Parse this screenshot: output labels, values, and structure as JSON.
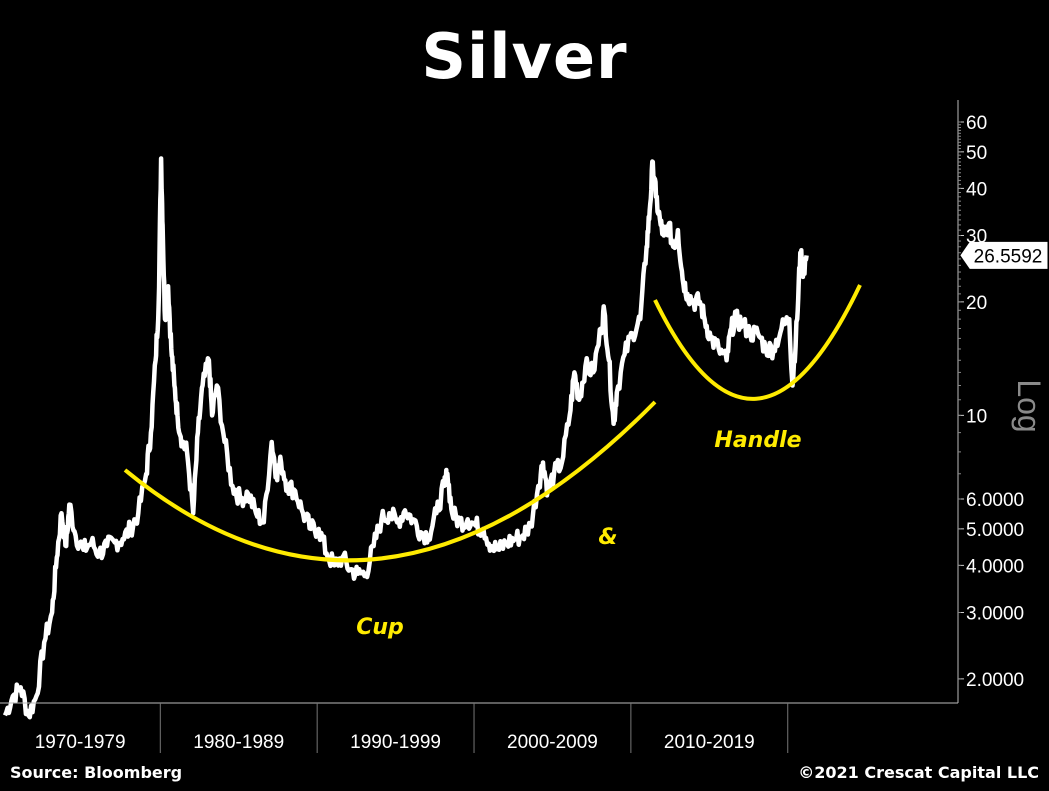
{
  "chart_data": {
    "type": "line",
    "title": "Silver",
    "y_scale": "log",
    "ylabel": "Log",
    "ylim": [
      1.2,
      65
    ],
    "y_ticks": [
      {
        "value": 60,
        "label": "60"
      },
      {
        "value": 50,
        "label": "50"
      },
      {
        "value": 40,
        "label": "40"
      },
      {
        "value": 30,
        "label": "30"
      },
      {
        "value": 20,
        "label": "20"
      },
      {
        "value": 10,
        "label": "10"
      },
      {
        "value": 6,
        "label": "6.0000"
      },
      {
        "value": 5,
        "label": "5.0000"
      },
      {
        "value": 4,
        "label": "4.0000"
      },
      {
        "value": 3,
        "label": "3.0000"
      },
      {
        "value": 2,
        "label": "2.0000"
      }
    ],
    "x_range": [
      1970,
      2021
    ],
    "x_categories": [
      "1970-1979",
      "1980-1989",
      "1990-1999",
      "2000-2009",
      "2010-2019"
    ],
    "last_value_label": "26.5592",
    "series": [
      {
        "x": [
          1970.0,
          1970.5,
          1971.0,
          1971.5,
          1972.0,
          1972.5,
          1973.0,
          1973.3,
          1973.6,
          1973.9,
          1974.1,
          1974.5,
          1975.0,
          1975.5,
          1976.0,
          1976.5,
          1977.0,
          1977.5,
          1978.0,
          1978.5,
          1979.0,
          1979.3,
          1979.6,
          1979.8,
          1979.95,
          1980.05,
          1980.2,
          1980.4,
          1980.6,
          1980.8,
          1981.0,
          1981.3,
          1981.6,
          1982.0,
          1982.3,
          1982.6,
          1983.0,
          1983.2,
          1983.5,
          1984.0,
          1984.5,
          1985.0,
          1985.5,
          1986.0,
          1986.5,
          1987.0,
          1987.3,
          1987.6,
          1988.0,
          1988.5,
          1989.0,
          1989.5,
          1990.0,
          1990.5,
          1991.0,
          1991.5,
          1992.0,
          1992.5,
          1993.0,
          1993.5,
          1994.0,
          1994.5,
          1995.0,
          1995.5,
          1996.0,
          1996.5,
          1997.0,
          1997.5,
          1998.0,
          1998.2,
          1998.5,
          1999.0,
          1999.5,
          2000.0,
          2000.5,
          2001.0,
          2001.5,
          2002.0,
          2002.5,
          2003.0,
          2003.5,
          2004.0,
          2004.3,
          2004.6,
          2005.0,
          2005.5,
          2006.0,
          2006.3,
          2006.6,
          2007.0,
          2007.5,
          2008.0,
          2008.2,
          2008.5,
          2008.8,
          2009.0,
          2009.5,
          2010.0,
          2010.5,
          2010.9,
          2011.1,
          2011.3,
          2011.5,
          2011.8,
          2012.0,
          2012.3,
          2012.6,
          2012.9,
          2013.2,
          2013.5,
          2013.9,
          2014.3,
          2014.6,
          2015.0,
          2015.5,
          2016.0,
          2016.3,
          2016.6,
          2017.0,
          2017.5,
          2018.0,
          2018.5,
          2019.0,
          2019.5,
          2020.0,
          2020.2,
          2020.5,
          2020.7,
          2020.9,
          2021.1
        ],
        "values": [
          1.6,
          1.8,
          1.9,
          1.6,
          1.8,
          2.5,
          3.0,
          4.2,
          5.5,
          4.5,
          5.8,
          4.8,
          4.4,
          4.6,
          4.3,
          4.5,
          4.6,
          4.7,
          5.0,
          5.5,
          7.0,
          9.0,
          14.0,
          20.0,
          48.0,
          32.0,
          18.0,
          22.0,
          15.0,
          12.0,
          10.0,
          8.5,
          8.0,
          5.5,
          9.0,
          12.0,
          14.0,
          10.0,
          12.0,
          8.5,
          6.5,
          6.0,
          6.2,
          5.5,
          5.2,
          8.5,
          7.0,
          7.5,
          6.5,
          6.3,
          5.5,
          5.0,
          5.0,
          4.3,
          4.0,
          4.2,
          3.9,
          3.8,
          3.8,
          4.5,
          5.3,
          5.5,
          5.2,
          5.6,
          5.3,
          4.9,
          4.8,
          5.5,
          6.5,
          7.0,
          5.5,
          5.2,
          5.3,
          5.1,
          5.0,
          4.5,
          4.4,
          4.6,
          4.7,
          4.8,
          5.1,
          6.5,
          7.5,
          6.3,
          7.0,
          7.5,
          10.0,
          13.0,
          11.0,
          13.5,
          13.0,
          17.0,
          19.0,
          14.0,
          9.5,
          11.5,
          14.5,
          16.5,
          18.0,
          28.0,
          35.0,
          47.0,
          38.0,
          32.0,
          30.0,
          32.0,
          28.0,
          31.0,
          23.0,
          21.0,
          20.0,
          20.0,
          18.0,
          16.0,
          15.0,
          14.0,
          17.0,
          18.0,
          17.5,
          16.5,
          16.5,
          15.0,
          15.0,
          17.0,
          18.0,
          12.0,
          18.0,
          27.0,
          24.0,
          26.5592
        ]
      }
    ],
    "annotations": [
      {
        "text": "Cup",
        "color": "#FFEB00"
      },
      {
        "text": "&",
        "color": "#FFEB00"
      },
      {
        "text": "Handle",
        "color": "#FFEB00"
      }
    ],
    "line_color": "#FFFFFF",
    "curve_color": "#FFEB00",
    "background": "#000000"
  },
  "footer": {
    "source": "Source: Bloomberg",
    "copyright": "©2021 Crescat Capital LLC"
  }
}
